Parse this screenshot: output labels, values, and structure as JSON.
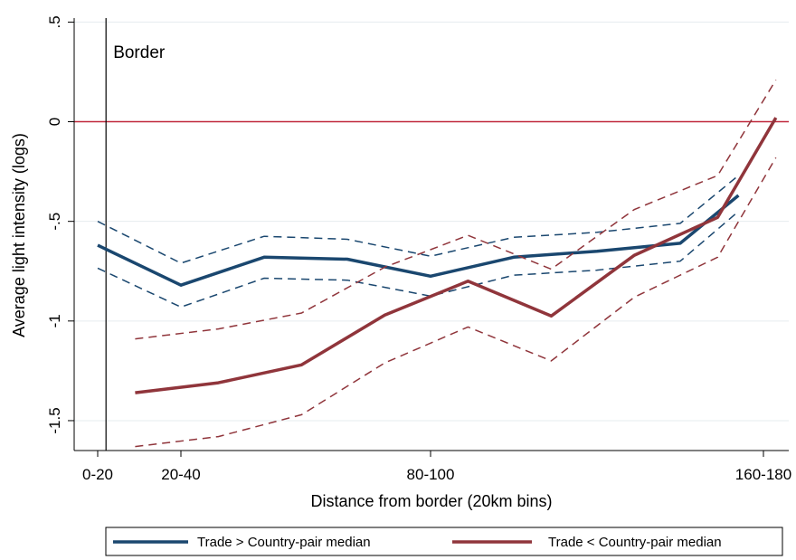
{
  "chart_data": {
    "type": "line",
    "title": "",
    "xlabel": "Distance from border (20km bins)",
    "ylabel": "Average light intensity (logs)",
    "xlim": [
      0,
      8.5
    ],
    "ylim": [
      -1.65,
      0.52
    ],
    "x_ticks": [
      {
        "value": 0,
        "label": "0-20"
      },
      {
        "value": 1,
        "label": "20-40"
      },
      {
        "value": 4,
        "label": "80-100"
      },
      {
        "value": 8,
        "label": "160-180"
      }
    ],
    "y_ticks": [
      {
        "value": 0.5,
        "label": ".5"
      },
      {
        "value": 0,
        "label": "0"
      },
      {
        "value": -0.5,
        "label": "-.5"
      },
      {
        "value": -1,
        "label": "-1"
      },
      {
        "value": -1.5,
        "label": "-1.5"
      }
    ],
    "grid": true,
    "reference_lines": {
      "horizontal": {
        "y": 0,
        "color": "#c0283c"
      },
      "vertical": {
        "x": 0.1,
        "label": "Border",
        "color": "#000000"
      }
    },
    "legend_position": "bottom",
    "series": [
      {
        "name": "Trade > Country-pair median",
        "color": "#1a476f",
        "x": [
          0,
          1,
          2,
          3,
          4,
          5,
          6,
          7,
          7.7
        ],
        "values": [
          -0.62,
          -0.82,
          -0.68,
          -0.69,
          -0.775,
          -0.68,
          -0.65,
          -0.61,
          -0.37
        ],
        "ci_upper": [
          -0.5,
          -0.71,
          -0.575,
          -0.59,
          -0.675,
          -0.58,
          -0.555,
          -0.51,
          -0.27
        ],
        "ci_lower": [
          -0.735,
          -0.93,
          -0.785,
          -0.795,
          -0.875,
          -0.77,
          -0.745,
          -0.7,
          -0.45
        ]
      },
      {
        "name": "Trade < Country-pair median",
        "color": "#90353b",
        "x": [
          0.45,
          1.45,
          2.45,
          3.45,
          4.45,
          5.45,
          6.45,
          7.45,
          8.15
        ],
        "values": [
          -1.36,
          -1.31,
          -1.22,
          -0.97,
          -0.8,
          -0.975,
          -0.67,
          -0.48,
          0.02
        ],
        "ci_upper": [
          -1.09,
          -1.04,
          -0.96,
          -0.73,
          -0.57,
          -0.74,
          -0.44,
          -0.27,
          0.21
        ],
        "ci_lower": [
          -1.63,
          -1.58,
          -1.47,
          -1.21,
          -1.03,
          -1.2,
          -0.88,
          -0.68,
          -0.18
        ]
      }
    ]
  }
}
